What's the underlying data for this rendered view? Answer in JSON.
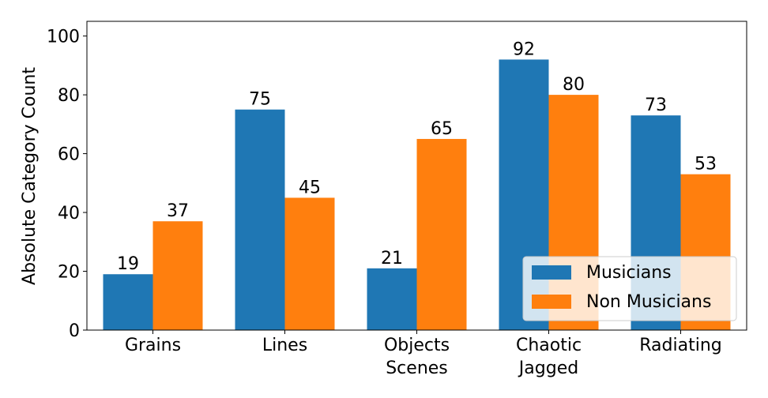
{
  "chart_data": {
    "type": "bar",
    "categories": [
      [
        "Grains"
      ],
      [
        "Lines"
      ],
      [
        "Objects",
        "Scenes"
      ],
      [
        "Chaotic",
        "Jagged"
      ],
      [
        "Radiating"
      ]
    ],
    "series": [
      {
        "name": "Musicians",
        "values": [
          19,
          75,
          21,
          92,
          73
        ],
        "color": "#1f77b4"
      },
      {
        "name": "Non Musicians",
        "values": [
          37,
          45,
          65,
          80,
          53
        ],
        "color": "#ff7f0e"
      }
    ],
    "title": "",
    "xlabel": "",
    "ylabel": "Absolute Category Count",
    "ylim": [
      0,
      105
    ],
    "yticks": [
      0,
      20,
      40,
      60,
      80,
      100
    ],
    "grid": false,
    "legend_position": "bottom-right"
  }
}
